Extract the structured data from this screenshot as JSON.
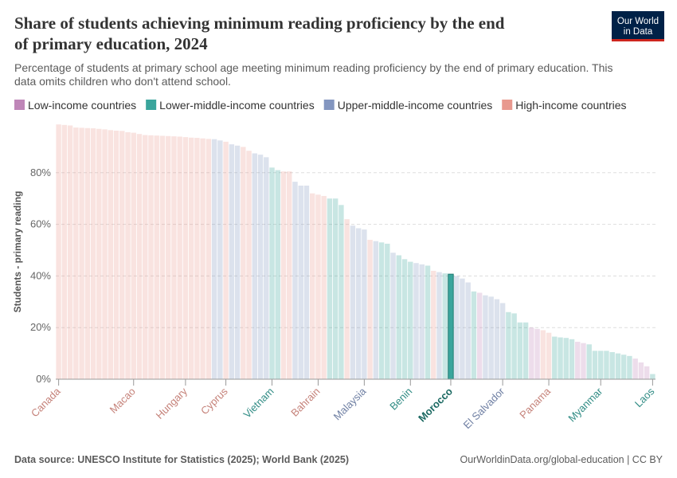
{
  "chart_data": {
    "type": "bar",
    "title": [
      "Share of students achieving minimum reading proficiency by the end",
      "of primary education, 2024"
    ],
    "subtitle": [
      "Percentage of students at primary school age meeting minimum reading proficiency by the end of primary education. This",
      "data omits children who don't attend school."
    ],
    "logo": [
      "Our World",
      "in Data"
    ],
    "y_label": "Students - primary reading",
    "legend": [
      {
        "name": "Low-income countries",
        "color": "#bf86b8"
      },
      {
        "name": "Lower-middle-income countries",
        "color": "#3aa59c"
      },
      {
        "name": "Upper-middle-income countries",
        "color": "#8396c0"
      },
      {
        "name": "High-income countries",
        "color": "#e8998f"
      }
    ],
    "highlight": "Morocco",
    "categories": [
      "Canada",
      null,
      null,
      null,
      null,
      null,
      null,
      null,
      null,
      null,
      null,
      null,
      null,
      "Macao",
      null,
      null,
      null,
      null,
      null,
      null,
      null,
      null,
      "Hungary",
      null,
      null,
      null,
      null,
      null,
      null,
      "Cyprus",
      null,
      null,
      null,
      null,
      null,
      null,
      null,
      "Vietnam",
      null,
      null,
      null,
      null,
      null,
      null,
      null,
      "Bahrain",
      null,
      null,
      null,
      null,
      null,
      null,
      null,
      "Malaysia",
      null,
      null,
      null,
      null,
      null,
      null,
      null,
      "Benin",
      null,
      null,
      null,
      null,
      null,
      null,
      "Morocco",
      null,
      null,
      null,
      null,
      null,
      null,
      null,
      null,
      "El Salvador",
      null,
      null,
      null,
      null,
      null,
      null,
      null,
      "Panama",
      null,
      null,
      null,
      null,
      null,
      null,
      null,
      null,
      "Myanmar",
      null,
      null,
      null,
      null,
      null,
      null,
      null,
      null,
      "Laos"
    ],
    "values": [
      98.7,
      98.5,
      98.3,
      97.5,
      97.4,
      97.3,
      97.2,
      97,
      96.8,
      96.5,
      96.3,
      96.2,
      95.7,
      95.5,
      95,
      94.6,
      94.5,
      94.4,
      94.3,
      94.2,
      94.1,
      94,
      93.8,
      93.6,
      93.5,
      93.3,
      93.1,
      93,
      92.5,
      92,
      91,
      90.5,
      90,
      88.5,
      87.5,
      87,
      86,
      82,
      81,
      80.5,
      80.5,
      76.5,
      75,
      75,
      72,
      71.5,
      71,
      70,
      70,
      67.5,
      62,
      59.5,
      58.5,
      58,
      54,
      53.5,
      53,
      52.5,
      49,
      48,
      46.5,
      45.5,
      45,
      44.5,
      44,
      42,
      41.5,
      41,
      40.7,
      40,
      39,
      37.5,
      34,
      33.5,
      32.5,
      32,
      31,
      29.5,
      26,
      25.5,
      22,
      22,
      20,
      19.5,
      19,
      18,
      16.5,
      16.2,
      16,
      15.5,
      14.5,
      14,
      13.5,
      11,
      11,
      11,
      10.5,
      10,
      9.5,
      9,
      8,
      6.5,
      5,
      2
    ],
    "groups": [
      3,
      3,
      3,
      3,
      3,
      3,
      3,
      3,
      3,
      3,
      3,
      3,
      3,
      3,
      3,
      3,
      3,
      3,
      3,
      3,
      3,
      3,
      3,
      3,
      3,
      3,
      3,
      2,
      2,
      3,
      2,
      2,
      3,
      3,
      2,
      2,
      2,
      1,
      1,
      3,
      3,
      2,
      2,
      2,
      3,
      3,
      3,
      1,
      1,
      1,
      3,
      2,
      2,
      2,
      3,
      2,
      1,
      1,
      2,
      1,
      1,
      1,
      2,
      2,
      1,
      3,
      2,
      1,
      1,
      2,
      2,
      2,
      1,
      0,
      2,
      2,
      2,
      2,
      1,
      1,
      1,
      1,
      0,
      0,
      3,
      3,
      1,
      1,
      1,
      1,
      0,
      0,
      1,
      1,
      1,
      1,
      1,
      1,
      1,
      1,
      0,
      0,
      0,
      1
    ],
    "ylim": [
      0,
      100
    ],
    "yticks": [
      {
        "value": 0,
        "label": "0%"
      },
      {
        "value": 20,
        "label": "20%"
      },
      {
        "value": 40,
        "label": "40%"
      },
      {
        "value": 60,
        "label": "60%"
      },
      {
        "value": 80,
        "label": "80%"
      }
    ],
    "grid": true,
    "source": "Data source: UNESCO Institute for Statistics (2025); World Bank (2025)",
    "url": "OurWorldinData.org/global-education | CC BY"
  }
}
